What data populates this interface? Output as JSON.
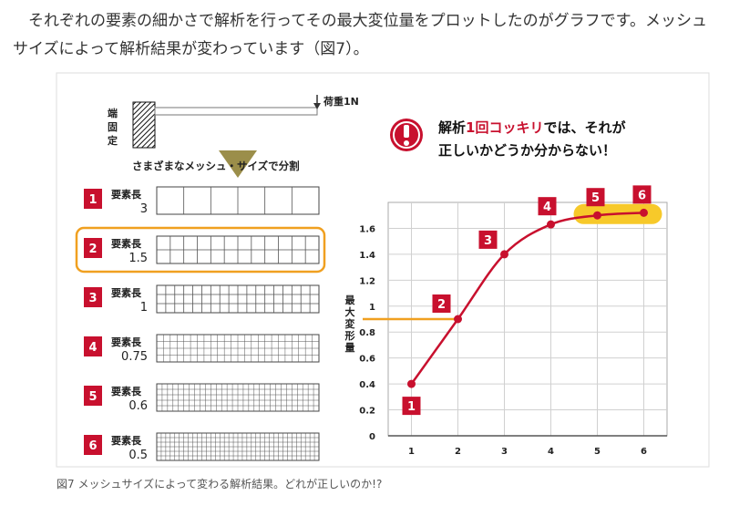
{
  "paragraph": "それぞれの要素の細かさで解析を行ってその最大変位量をプロットしたのがグラフです。メッシュサイズによって解析結果が変わっています（図7）。",
  "figure": {
    "fixed_end_chars": [
      "端",
      "固",
      "定"
    ],
    "load_label": "荷重1N",
    "split_label": "さまざまなメッシュ・サイズで分割",
    "element_length_label": "要素長",
    "meshes": [
      {
        "num": "1",
        "length": "3",
        "divisions": 6,
        "highlight": false
      },
      {
        "num": "2",
        "length": "1.5",
        "divisions": 12,
        "highlight": true
      },
      {
        "num": "3",
        "length": "1",
        "divisions": 18,
        "highlight": false
      },
      {
        "num": "4",
        "length": "0.75",
        "divisions": 24,
        "highlight": false
      },
      {
        "num": "5",
        "length": "0.6",
        "divisions": 30,
        "highlight": false
      },
      {
        "num": "6",
        "length": "0.5",
        "divisions": 36,
        "highlight": false
      }
    ],
    "warning_icon": "exclamation-icon",
    "warning": {
      "line1_a": "解析",
      "line1_b": "1回コッキリ",
      "line1_c": "では、それが",
      "line2": "正しいかどうか分からない！"
    },
    "colors": {
      "red": "#c8102e",
      "orange": "#f0a020",
      "yellow": "#f7c92a",
      "olive": "#8a7a2a"
    }
  },
  "chart_data": {
    "type": "line",
    "x": [
      1,
      2,
      3,
      4,
      5,
      6
    ],
    "y": [
      0.4,
      0.9,
      1.4,
      1.63,
      1.7,
      1.72
    ],
    "point_labels": [
      "1",
      "2",
      "3",
      "4",
      "5",
      "6"
    ],
    "ylabel": "最大変形量",
    "xlabel": "",
    "xticks": [
      "1",
      "2",
      "3",
      "4",
      "5",
      "6"
    ],
    "yticks": [
      "0",
      "0.2",
      "0.4",
      "0.6",
      "0.8",
      "1",
      "1.2",
      "1.4",
      "1.6"
    ],
    "ylim": [
      0,
      1.8
    ],
    "xlim": [
      0.5,
      6.5
    ],
    "reference_line_y": 0.9,
    "highlight_points": [
      5,
      6
    ],
    "grid": true
  },
  "caption": "図7 メッシュサイズによって変わる解析結果。どれが正しいのか!?"
}
